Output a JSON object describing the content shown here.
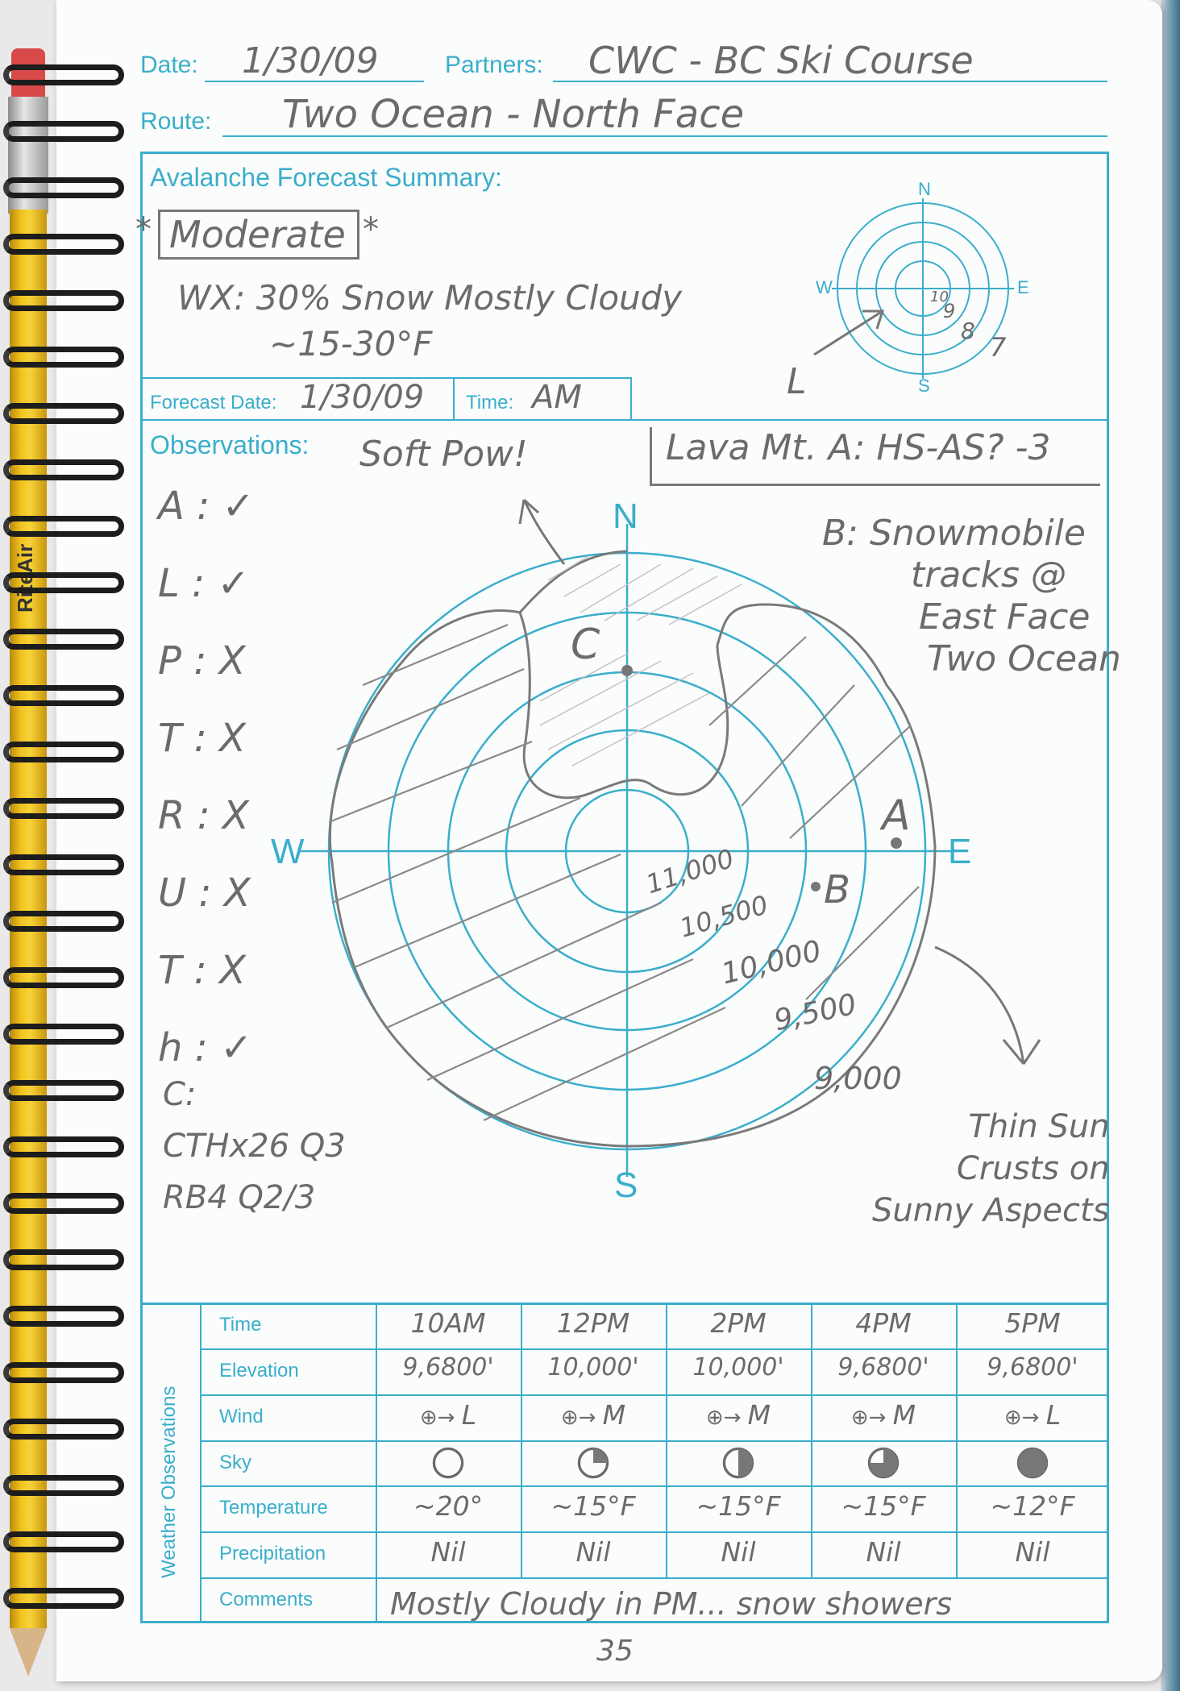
{
  "header": {
    "date_label": "Date:",
    "date_value": "1/30/09",
    "partners_label": "Partners:",
    "partners_value": "CWC - BC Ski Course",
    "route_label": "Route:",
    "route_value": "Two Ocean - North Face"
  },
  "forecast": {
    "title": "Avalanche Forecast Summary:",
    "danger": "Moderate",
    "wx_line1": "WX: 30% Snow   Mostly Cloudy",
    "wx_line2": "~15-30°F",
    "forecast_date_label": "Forecast Date:",
    "forecast_date_value": "1/30/09",
    "time_label": "Time:",
    "time_value": "AM",
    "compass": {
      "n": "N",
      "s": "S",
      "e": "E",
      "w": "W",
      "wind_label": "L",
      "ring_labels": [
        "10",
        "9",
        "8",
        "7"
      ]
    }
  },
  "observations": {
    "title": "Observations:",
    "note_top": "Soft Pow!",
    "note_box": "Lava Mt. A: HS-AS? -3",
    "checklist": [
      {
        "key": "A",
        "mark": "✓"
      },
      {
        "key": "L",
        "mark": "✓"
      },
      {
        "key": "P",
        "mark": "X"
      },
      {
        "key": "T",
        "mark": "X"
      },
      {
        "key": "R",
        "mark": "X"
      },
      {
        "key": "U",
        "mark": "X"
      },
      {
        "key": "T",
        "mark": "X"
      },
      {
        "key": "h",
        "mark": "✓"
      }
    ],
    "note_b": [
      "B: Snowmobile",
      "tracks @",
      "East Face",
      "Two Ocean"
    ],
    "note_c": [
      "C:",
      "CTHx26 Q3",
      "RB4 Q2/3"
    ],
    "note_crusts": [
      "Thin Sun",
      "Crusts on",
      "Sunny Aspects"
    ],
    "rose": {
      "n": "N",
      "s": "S",
      "e": "E",
      "w": "W",
      "elevations": [
        "11,000",
        "10,500",
        "10,000",
        "9,500",
        "9,000"
      ],
      "points": [
        "A",
        "B",
        "C"
      ]
    }
  },
  "weather": {
    "side_title": "Weather Observations",
    "row_labels": [
      "Time",
      "Elevation",
      "Wind",
      "Sky",
      "Temperature",
      "Precipitation",
      "Comments"
    ],
    "times": [
      "10AM",
      "12PM",
      "2PM",
      "4PM",
      "5PM"
    ],
    "elevations": [
      "9,6800'",
      "10,000'",
      "10,000'",
      "9,6800'",
      "9,6800'"
    ],
    "wind": [
      "L",
      "M",
      "M",
      "M",
      "L"
    ],
    "sky": [
      "clear",
      "few",
      "scattered",
      "broken",
      "overcast"
    ],
    "temperatures": [
      "~20°",
      "~15°F",
      "~15°F",
      "~15°F",
      "~12°F"
    ],
    "precipitation": [
      "Nil",
      "Nil",
      "Nil",
      "Nil",
      "Nil"
    ],
    "comments": "Mostly Cloudy in PM... snow showers"
  },
  "page_number": "35",
  "pencil_brand": "RiteAir"
}
